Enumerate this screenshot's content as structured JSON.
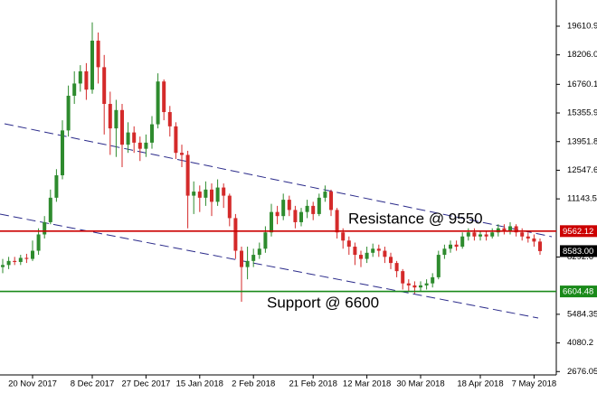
{
  "chart_data": {
    "type": "candlestick",
    "categories": [
      null,
      null,
      null,
      null,
      null,
      "20 Nov 2017",
      null,
      null,
      null,
      null,
      null,
      null,
      null,
      null,
      null,
      "8 Dec 2017",
      null,
      null,
      null,
      null,
      null,
      null,
      null,
      null,
      "27 Dec 2017",
      null,
      null,
      null,
      null,
      null,
      null,
      null,
      null,
      "15 Jan 2018",
      null,
      null,
      null,
      null,
      null,
      null,
      null,
      null,
      "2 Feb 2018",
      null,
      null,
      null,
      null,
      null,
      null,
      null,
      null,
      null,
      "21 Feb 2018",
      null,
      null,
      null,
      null,
      null,
      null,
      null,
      null,
      "12 Mar 2018",
      null,
      null,
      null,
      null,
      null,
      null,
      null,
      null,
      "30 Mar 2018",
      null,
      null,
      null,
      null,
      null,
      null,
      null,
      null,
      null,
      "18 Apr 2018",
      null,
      null,
      null,
      null,
      null,
      null,
      null,
      null,
      "7 May 2018",
      null
    ],
    "open": [
      7800,
      7900,
      8100,
      8050,
      8250,
      8200,
      8600,
      9400,
      10000,
      11200,
      12300,
      14500,
      16200,
      16800,
      17400,
      16500,
      18900,
      17600,
      15800,
      14600,
      15500,
      13800,
      14400,
      13900,
      13600,
      13900,
      14800,
      16900,
      15400,
      14700,
      13400,
      13300,
      11300,
      11500,
      11200,
      11600,
      11000,
      11700,
      11300,
      10200,
      8600,
      7800,
      8100,
      8400,
      8700,
      9500,
      10500,
      10300,
      11100,
      10600,
      10000,
      10500,
      10800,
      10400,
      11200,
      11500,
      10600,
      9500,
      9100,
      8800,
      8400,
      8200,
      8500,
      8700,
      8600,
      8300,
      8000,
      7600,
      7000,
      6900,
      6800,
      6900,
      7000,
      7300,
      8400,
      8700,
      8900,
      8800,
      9300,
      9500,
      9300,
      9400,
      9300,
      9500,
      9700,
      9600,
      9800,
      9500,
      9300,
      9200,
      9050
    ],
    "high": [
      8200,
      8300,
      8300,
      8400,
      8450,
      9100,
      9700,
      10300,
      11600,
      12600,
      15000,
      16700,
      17400,
      17700,
      17800,
      19800,
      19300,
      18200,
      16400,
      16000,
      15800,
      14900,
      14700,
      14200,
      14300,
      15200,
      17300,
      17000,
      15700,
      14900,
      13800,
      13500,
      12000,
      11800,
      12000,
      11900,
      12100,
      11900,
      11400,
      10400,
      8800,
      8800,
      8700,
      9000,
      9800,
      10900,
      10800,
      11400,
      11300,
      10800,
      10700,
      11100,
      11000,
      11400,
      11800,
      11600,
      10700,
      9700,
      9300,
      9000,
      8600,
      8800,
      8950,
      8900,
      8800,
      8500,
      8100,
      7700,
      7200,
      7100,
      7100,
      7200,
      7500,
      8600,
      8900,
      9100,
      9100,
      9500,
      9700,
      9700,
      9600,
      9600,
      9700,
      9900,
      9900,
      10000,
      9900,
      9700,
      9500,
      9400,
      9200
    ],
    "low": [
      7500,
      7700,
      7900,
      7900,
      8000,
      8100,
      8400,
      9200,
      9900,
      11000,
      12100,
      14200,
      15800,
      16400,
      16000,
      16300,
      16800,
      14300,
      13300,
      13200,
      12700,
      13400,
      13400,
      13000,
      13200,
      13600,
      14600,
      15000,
      14200,
      13100,
      12700,
      9700,
      10400,
      10500,
      10800,
      10300,
      10800,
      10700,
      9800,
      8200,
      6100,
      7200,
      7800,
      8200,
      8500,
      9300,
      9900,
      10100,
      10300,
      9700,
      9800,
      10200,
      10100,
      10300,
      11000,
      10300,
      9200,
      8700,
      8400,
      7900,
      7800,
      8000,
      8300,
      8300,
      8000,
      7700,
      7300,
      6700,
      6600,
      6500,
      6600,
      6700,
      6800,
      7200,
      8200,
      8500,
      8600,
      8700,
      9100,
      9100,
      9100,
      9100,
      9200,
      9300,
      9400,
      9400,
      9300,
      9100,
      9000,
      8800,
      8400
    ],
    "close": [
      7900,
      8100,
      8050,
      8250,
      8200,
      8600,
      9400,
      10000,
      11200,
      12300,
      14500,
      16200,
      16800,
      17400,
      16500,
      18900,
      17600,
      15800,
      14600,
      15500,
      13800,
      14400,
      13900,
      13600,
      13900,
      14800,
      16900,
      15400,
      14700,
      13400,
      13300,
      11300,
      11500,
      11200,
      11600,
      11000,
      11700,
      11300,
      10200,
      8600,
      7800,
      8100,
      8400,
      8700,
      9500,
      10500,
      10300,
      11100,
      10600,
      10000,
      10500,
      10800,
      10400,
      11200,
      11500,
      10600,
      9500,
      9100,
      8800,
      8400,
      8200,
      8500,
      8700,
      8600,
      8300,
      8000,
      7600,
      7000,
      6900,
      6800,
      6900,
      7000,
      7300,
      8400,
      8700,
      8900,
      8800,
      9300,
      9500,
      9300,
      9400,
      9300,
      9500,
      9700,
      9600,
      9800,
      9500,
      9300,
      9200,
      9050,
      8583
    ],
    "up_color": "#2e8b2e",
    "down_color": "#d42a2a",
    "ylim": [
      2511,
      20895
    ],
    "yticks": [
      19610.9,
      {
        "value": 18206,
        "label": "18206.0"
      },
      16760.1,
      15355.9,
      13951.8,
      12547.6,
      11143.5,
      8292.6,
      5484.35,
      4080.2,
      2676.05
    ],
    "levels": [
      {
        "value": 9562.12,
        "label": "9562.12",
        "color": "#cc0000",
        "annotation": "Resistance @ 9550"
      },
      {
        "value": 6604.48,
        "label": "6604.48",
        "color": "#1a8a1a",
        "annotation": "Support @ 6600"
      }
    ],
    "price_marker": {
      "value": 8583,
      "label": "8583.00",
      "color": "#000000"
    }
  }
}
